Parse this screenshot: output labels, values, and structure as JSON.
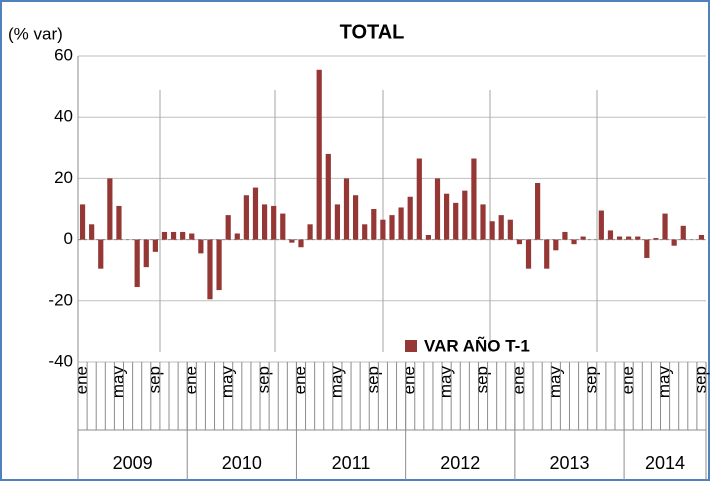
{
  "chart_data": {
    "type": "bar",
    "title": "TOTAL",
    "y_label": "(% var)",
    "categories": [
      "ene",
      null,
      null,
      null,
      "may",
      null,
      null,
      null,
      "sep",
      null,
      null,
      null,
      "ene",
      null,
      null,
      null,
      "may",
      null,
      null,
      null,
      "sep",
      null,
      null,
      null,
      "ene",
      null,
      null,
      null,
      "may",
      null,
      null,
      null,
      "sep",
      null,
      null,
      null,
      "ene",
      null,
      null,
      null,
      "may",
      null,
      null,
      null,
      "sep",
      null,
      null,
      null,
      "ene",
      null,
      null,
      null,
      "may",
      null,
      null,
      null,
      "sep",
      null,
      null,
      null,
      "ene",
      null,
      null,
      null,
      "may",
      null,
      null,
      null,
      "sep"
    ],
    "years": [
      "2009",
      "2010",
      "2011",
      "2012",
      "2013",
      "2014"
    ],
    "series": [
      {
        "name": "VAR AÑO T-1",
        "color": "#953735",
        "values": [
          11.5,
          5,
          -9.5,
          20,
          11,
          0,
          -15.5,
          -9,
          -4,
          2.5,
          2.5,
          2.5,
          2,
          -4.5,
          -19.5,
          -16.5,
          8,
          2,
          14.5,
          17,
          11.5,
          11,
          8.5,
          -1,
          -2.5,
          5,
          55.5,
          28,
          11.5,
          20,
          14.5,
          5,
          10,
          6.5,
          8,
          10.5,
          14,
          26.5,
          1.5,
          20,
          15,
          12,
          16,
          26.5,
          11.5,
          6,
          8,
          6.5,
          -1.5,
          -9.5,
          18.5,
          -9.5,
          -3.5,
          2.5,
          -1.5,
          1,
          0,
          9.5,
          3,
          1,
          1,
          1,
          -6,
          0.5,
          8.5,
          -2,
          4.5,
          0,
          1.5
        ]
      }
    ],
    "ylim": [
      -40,
      60
    ],
    "yticks": [
      -40,
      -20,
      0,
      20,
      40,
      60
    ],
    "grid": true,
    "legend": "bottom-center"
  }
}
